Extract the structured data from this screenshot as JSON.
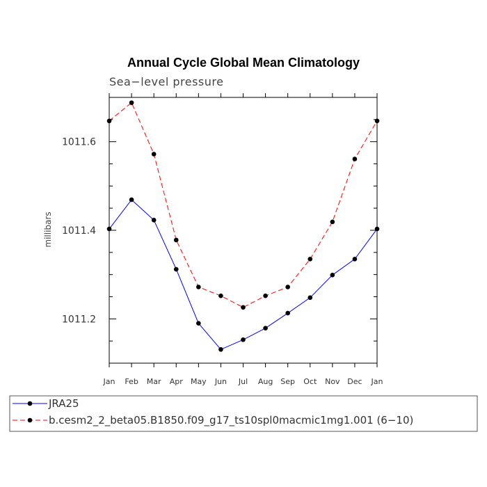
{
  "chart_data": {
    "type": "line",
    "title": "Annual Cycle Global Mean Climatology",
    "subtitle": "Sea−level pressure",
    "xlabel": "",
    "ylabel": "millibars",
    "categories": [
      "Jan",
      "Feb",
      "Mar",
      "Apr",
      "May",
      "Jun",
      "Jul",
      "Aug",
      "Sep",
      "Oct",
      "Nov",
      "Dec",
      "Jan"
    ],
    "ylim": [
      1011.1,
      1011.7
    ],
    "yticks_major": [
      1011.2,
      1011.4,
      1011.6
    ],
    "ytick_labels": [
      "1011.2",
      "1011.4",
      "1011.6"
    ],
    "yticks_minor": [
      1011.1,
      1011.15,
      1011.25,
      1011.3,
      1011.35,
      1011.45,
      1011.5,
      1011.55,
      1011.65,
      1011.7
    ],
    "series": [
      {
        "name": "JRA25",
        "color": "#0000ff",
        "style": "solid",
        "values": [
          1011.403,
          1011.469,
          1011.423,
          1011.312,
          1011.19,
          1011.131,
          1011.153,
          1011.179,
          1011.213,
          1011.248,
          1011.299,
          1011.335,
          1011.403
        ]
      },
      {
        "name": "b.cesm2_2_beta05.B1850.f09_g17_ts10spl0macmic1mg1.001 (6−10)",
        "color": "#ff0000",
        "style": "dashed",
        "values": [
          1011.647,
          1011.688,
          1011.572,
          1011.378,
          1011.272,
          1011.252,
          1011.226,
          1011.252,
          1011.272,
          1011.335,
          1011.419,
          1011.561,
          1011.647
        ]
      }
    ],
    "legend_position": "bottom"
  }
}
